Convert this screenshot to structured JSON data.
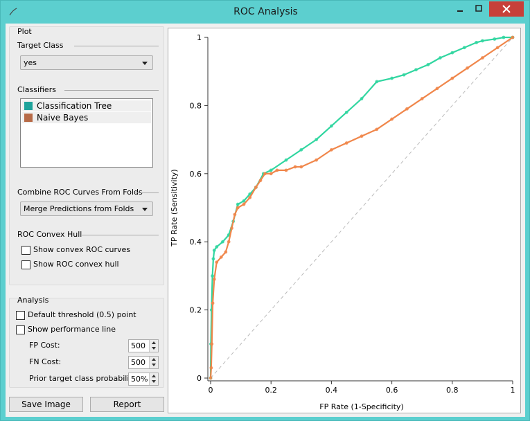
{
  "window": {
    "title": "ROC Analysis"
  },
  "plot_panel": {
    "heading": "Plot"
  },
  "target_class": {
    "heading": "Target Class",
    "selected": "yes"
  },
  "classifiers": {
    "heading": "Classifiers",
    "items": [
      {
        "label": "Classification Tree",
        "color": "#1fa39b"
      },
      {
        "label": "Naive Bayes",
        "color": "#b76a47"
      }
    ]
  },
  "combine": {
    "heading": "Combine ROC Curves From Folds",
    "selected": "Merge Predictions from Folds"
  },
  "convex_hull": {
    "heading": "ROC Convex Hull",
    "show_convex_curves": {
      "label": "Show convex ROC curves",
      "checked": false
    },
    "show_convex_hull": {
      "label": "Show ROC convex hull",
      "checked": false
    }
  },
  "analysis": {
    "heading": "Analysis",
    "default_threshold": {
      "label": "Default threshold (0.5) point",
      "checked": false
    },
    "performance_line": {
      "label": "Show performance line",
      "checked": false
    },
    "fp_cost": {
      "label": "FP Cost:",
      "value": "500"
    },
    "fn_cost": {
      "label": "FN Cost:",
      "value": "500"
    },
    "prior": {
      "label": "Prior target class probability:",
      "value": "50%"
    }
  },
  "buttons": {
    "save_image": "Save Image",
    "report": "Report"
  },
  "chart_data": {
    "type": "line",
    "xlabel": "FP Rate (1-Specificity)",
    "ylabel": "TP Rate (Sensitivity)",
    "xlim": [
      0,
      1
    ],
    "ylim": [
      0,
      1
    ],
    "x_ticks": [
      "0",
      "0.2",
      "0.4",
      "0.6",
      "0.8",
      "1"
    ],
    "y_ticks": [
      "0",
      "0.2",
      "0.4",
      "0.6",
      "0.8",
      "1"
    ],
    "grid": false,
    "diagonal": true,
    "series": [
      {
        "name": "Classification Tree",
        "color": "#30d6a0",
        "x": [
          0,
          0.001,
          0.003,
          0.006,
          0.009,
          0.012,
          0.02,
          0.04,
          0.06,
          0.075,
          0.09,
          0.11,
          0.13,
          0.15,
          0.175,
          0.2,
          0.25,
          0.3,
          0.35,
          0.4,
          0.45,
          0.5,
          0.55,
          0.6,
          0.64,
          0.68,
          0.72,
          0.76,
          0.8,
          0.84,
          0.88,
          0.9,
          0.94,
          0.97,
          1
        ],
        "y": [
          0,
          0.1,
          0.2,
          0.3,
          0.35,
          0.375,
          0.385,
          0.4,
          0.42,
          0.46,
          0.51,
          0.52,
          0.54,
          0.56,
          0.6,
          0.61,
          0.64,
          0.67,
          0.7,
          0.74,
          0.78,
          0.82,
          0.87,
          0.88,
          0.89,
          0.905,
          0.92,
          0.94,
          0.955,
          0.97,
          0.985,
          0.99,
          0.995,
          1,
          1
        ]
      },
      {
        "name": "Naive Bayes",
        "color": "#f0864a",
        "x": [
          0,
          0.002,
          0.004,
          0.007,
          0.012,
          0.02,
          0.035,
          0.05,
          0.06,
          0.07,
          0.08,
          0.09,
          0.11,
          0.13,
          0.15,
          0.165,
          0.18,
          0.2,
          0.22,
          0.25,
          0.28,
          0.3,
          0.35,
          0.4,
          0.45,
          0.5,
          0.55,
          0.6,
          0.65,
          0.7,
          0.75,
          0.8,
          0.85,
          0.9,
          0.95,
          1
        ],
        "y": [
          0,
          0.03,
          0.1,
          0.22,
          0.29,
          0.34,
          0.355,
          0.37,
          0.4,
          0.44,
          0.48,
          0.5,
          0.51,
          0.53,
          0.56,
          0.58,
          0.6,
          0.6,
          0.61,
          0.61,
          0.62,
          0.62,
          0.64,
          0.67,
          0.69,
          0.71,
          0.73,
          0.76,
          0.79,
          0.82,
          0.85,
          0.88,
          0.91,
          0.94,
          0.97,
          1
        ]
      }
    ]
  }
}
